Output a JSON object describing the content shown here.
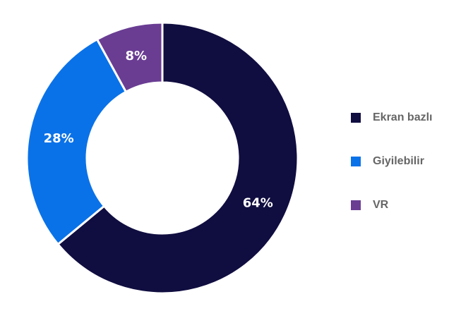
{
  "chart_data": {
    "type": "pie",
    "donut": true,
    "title": "",
    "categories": [
      "Ekran bazlı",
      "Giyilebilir",
      "VR"
    ],
    "values": [
      64,
      28,
      8
    ],
    "labels": [
      "64%",
      "28%",
      "8%"
    ],
    "colors": [
      "#100d40",
      "#0a72e8",
      "#6a3d93"
    ],
    "legend_position": "right"
  }
}
